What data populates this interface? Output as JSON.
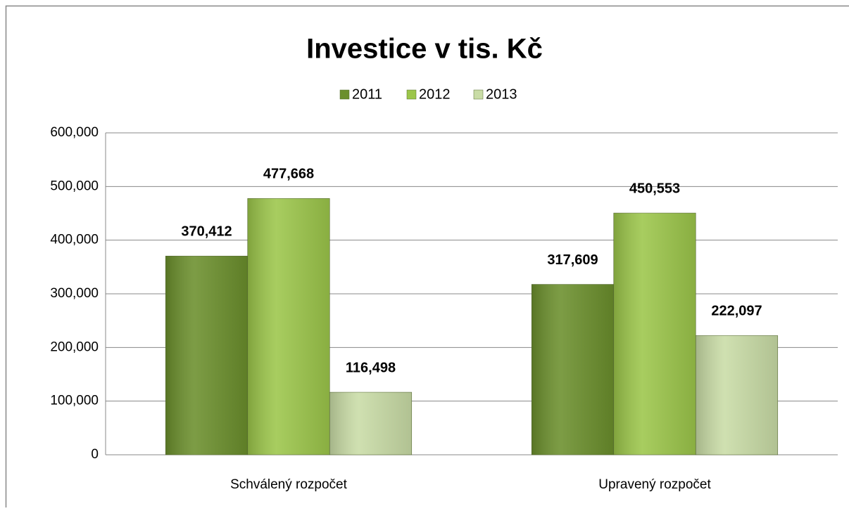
{
  "chart_data": {
    "type": "bar",
    "title": "Investice v tis. Kč",
    "categories": [
      "Schválený rozpočet",
      "Upravený rozpočet"
    ],
    "series": [
      {
        "name": "2011",
        "color": "#6b8f2c",
        "values": [
          370412,
          317609
        ],
        "value_labels": [
          "370,412",
          "317,609"
        ]
      },
      {
        "name": "2012",
        "color": "#9cc64a",
        "values": [
          477668,
          450553
        ],
        "value_labels": [
          "477,668",
          "450,553"
        ]
      },
      {
        "name": "2013",
        "color": "#c9dca6",
        "values": [
          116498,
          222097
        ],
        "value_labels": [
          "116,498",
          "222,097"
        ]
      }
    ],
    "ylim": [
      0,
      600000
    ],
    "yticks": [
      0,
      {
        "value": 100000,
        "label": "100,000"
      },
      {
        "value": 200000,
        "label": "200,000"
      },
      {
        "value": 300000,
        "label": "300,000"
      },
      {
        "value": 400000,
        "label": "400,000"
      },
      {
        "value": 500000,
        "label": "500,000"
      },
      {
        "value": 600000,
        "label": "600,000"
      }
    ],
    "grid": true,
    "legend": "top"
  }
}
